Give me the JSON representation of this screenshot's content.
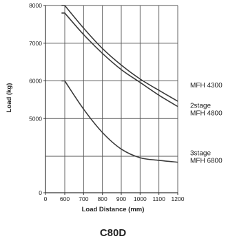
{
  "chart_data": {
    "type": "line",
    "title": "C80D",
    "xlabel": "Load Distance (mm)",
    "ylabel": "Load (kg)",
    "xlim": [
      0,
      1200
    ],
    "ylim": [
      0,
      8000
    ],
    "x_broken_axis": true,
    "y_broken_axis": true,
    "grid": true,
    "x_ticks": [
      {
        "value": 0,
        "label": "0"
      },
      {
        "value": 600,
        "label": "600"
      },
      {
        "value": 700,
        "label": "700"
      },
      {
        "value": 800,
        "label": "800"
      },
      {
        "value": 900,
        "label": "900"
      },
      {
        "value": 1000,
        "label": "1000"
      },
      {
        "value": 1100,
        "label": "1100"
      },
      {
        "value": 1200,
        "label": "1200"
      }
    ],
    "y_ticks": [
      {
        "value": 0,
        "label": "0"
      },
      {
        "value": 5000,
        "label": "5000"
      },
      {
        "value": 6000,
        "label": "6000"
      },
      {
        "value": 7000,
        "label": "7000"
      },
      {
        "value": 8000,
        "label": "8000"
      }
    ],
    "series": [
      {
        "name": "MFH 4300",
        "label_lines": [
          "MFH  4300"
        ],
        "x": [
          500,
          600,
          700,
          800,
          900,
          1000,
          1100,
          1200
        ],
        "y": [
          8000,
          8000,
          7400,
          6860,
          6420,
          6050,
          5750,
          5460
        ]
      },
      {
        "name": "2stage MFH 4800",
        "label_lines": [
          "2stage",
          "MFH  4800"
        ],
        "x": [
          500,
          600,
          700,
          800,
          900,
          1000,
          1100,
          1200
        ],
        "y": [
          7800,
          7800,
          7230,
          6730,
          6300,
          5960,
          5620,
          5320
        ]
      },
      {
        "name": "3stage MFH 6800",
        "label_lines": [
          "3stage",
          "MFH  6800"
        ],
        "x": [
          500,
          600,
          700,
          800,
          900,
          1000,
          1100,
          1200
        ],
        "y": [
          6000,
          6000,
          5250,
          4630,
          4190,
          3840,
          3550,
          3350
        ]
      }
    ],
    "colors": {
      "line": "#3a3a3a",
      "grid": "#555555",
      "axis": "#333333"
    }
  }
}
